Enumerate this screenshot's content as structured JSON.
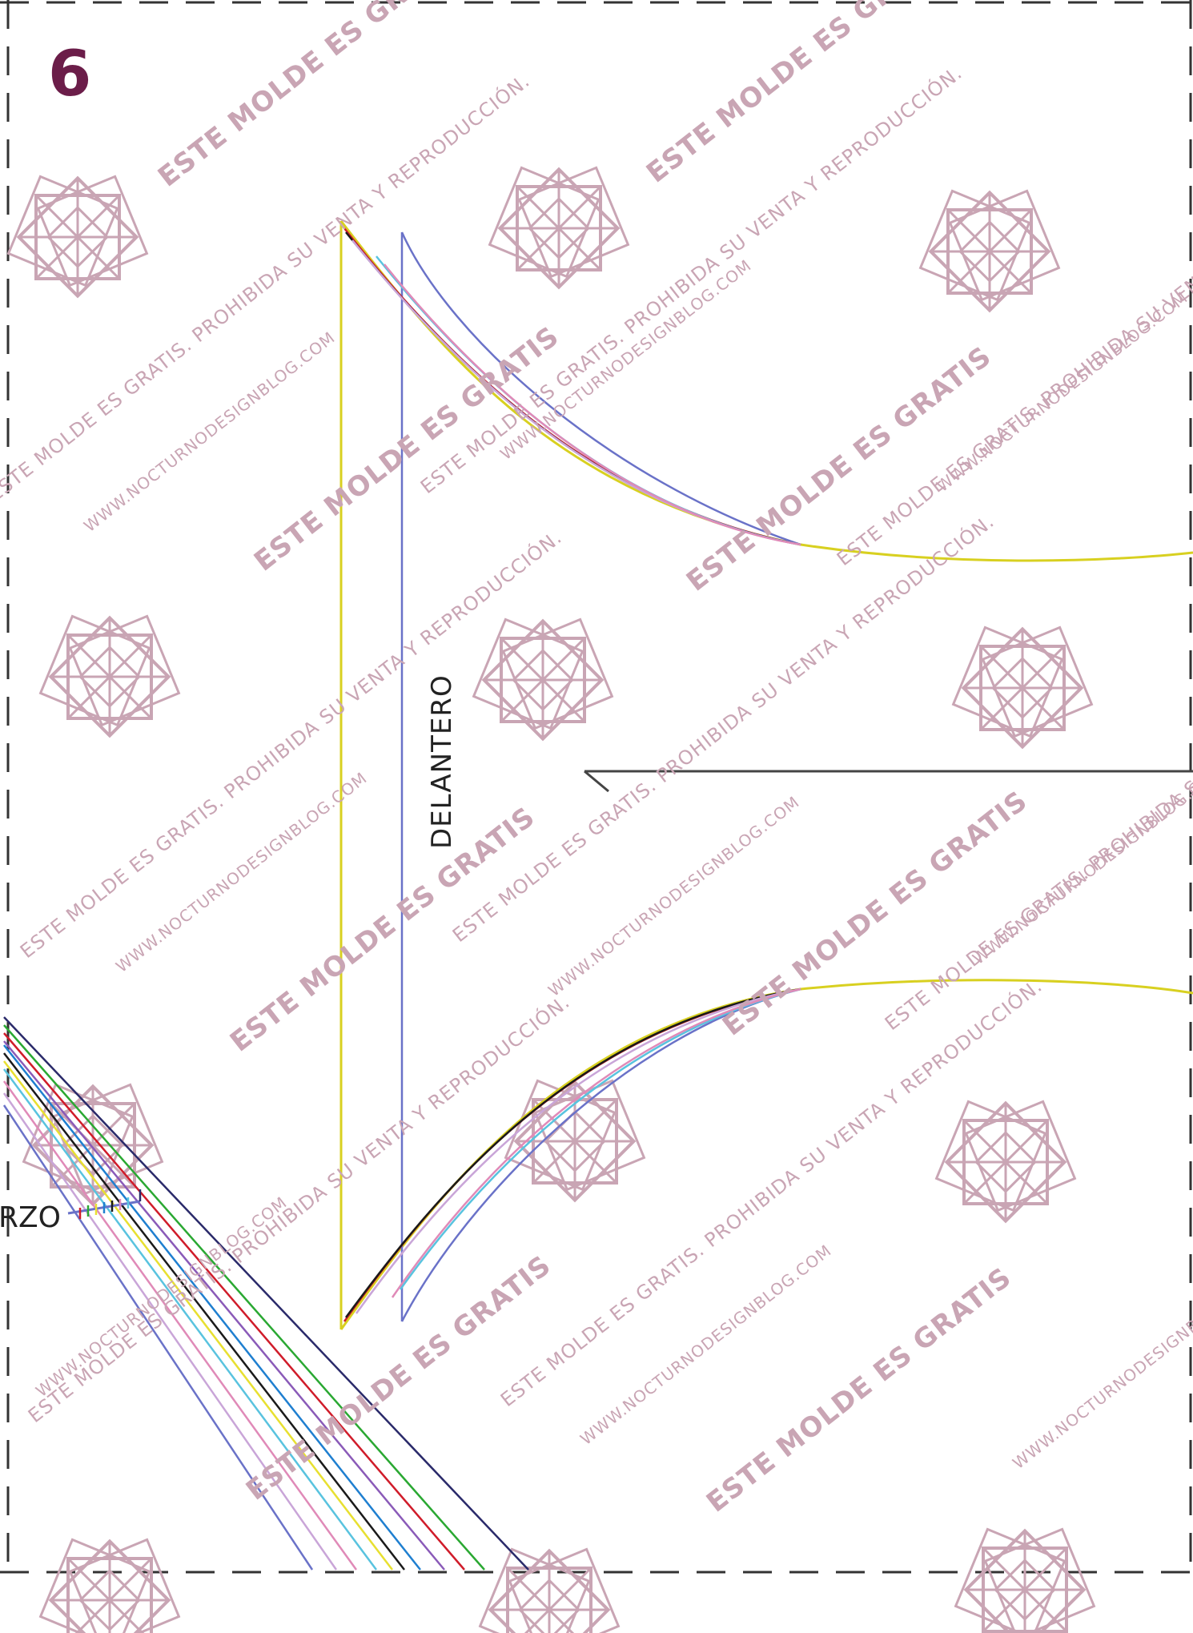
{
  "page": {
    "number": "6",
    "piece_label": "DELANTERO",
    "partial_label": "RZO"
  },
  "watermark": {
    "line1": "ESTE MOLDE ES GRATIS",
    "line2": "ESTE MOLDE ES GRATIS. PROHIBIDA SU VENTA Y REPRODUCCIÓN.",
    "line3": "WWW.NOCTURNODESIGNBLOG.COM",
    "color": "#c9a5b4"
  },
  "colors": {
    "page_number": "#6b1d49",
    "ornament": "#c9a5b4",
    "cut_border": "#333333",
    "size_lines": [
      "#6a72c8",
      "#c9a5d8",
      "#e08ab8",
      "#59c3df",
      "#e8e030",
      "#1a1a1a",
      "#1f7fd0",
      "#d01c2a",
      "#2aa832",
      "#8a5ab8",
      "#2a2a6a"
    ]
  }
}
